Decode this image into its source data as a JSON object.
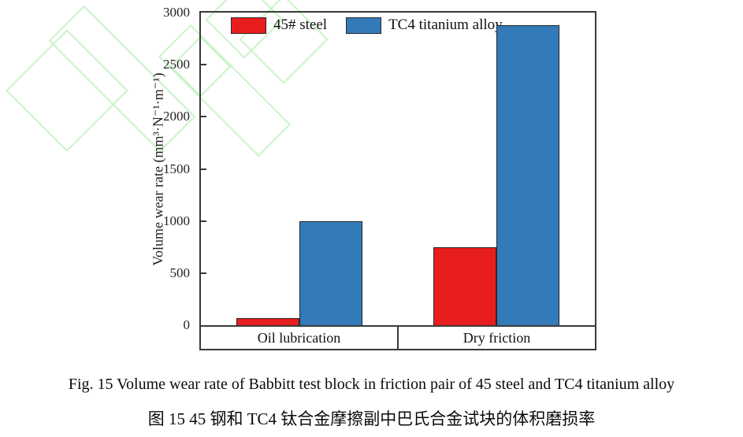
{
  "figure": {
    "caption_en": "Fig. 15 Volume wear rate of Babbitt test block in friction pair of 45 steel and TC4 titanium alloy",
    "caption_zh": "图 15 45 钢和 TC4 钛合金摩擦副中巴氏合金试块的体积磨损率"
  },
  "chart_data": {
    "type": "bar",
    "title": "",
    "categories": [
      "Oil lubrication",
      "Dry friction"
    ],
    "series": [
      {
        "name": "45# steel",
        "color": "#e81e1e",
        "values": [
          70,
          750
        ]
      },
      {
        "name": "TC4 titanium alloy",
        "color": "#337ab8",
        "values": [
          1000,
          2880
        ]
      }
    ],
    "xlabel": "",
    "ylabel": "Volume wear rate (mm³·N⁻¹·m⁻¹)",
    "ylim": [
      0,
      3000
    ],
    "yticks": [
      0,
      500,
      1000,
      1500,
      2000,
      2500,
      3000
    ],
    "grid": false,
    "legend_position": "top-left-inside",
    "watermark_color": "#c9f3c8",
    "axis_color": "#3a3a3a"
  }
}
